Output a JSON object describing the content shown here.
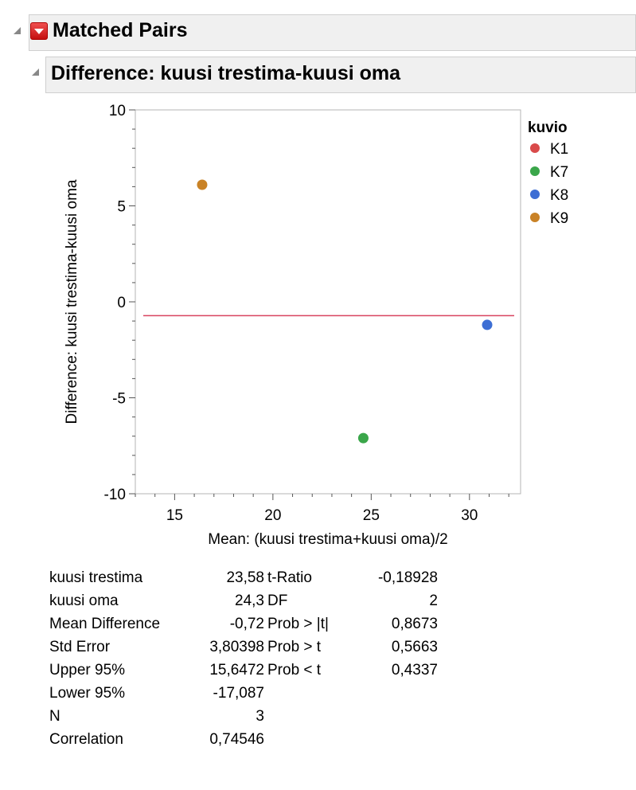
{
  "report": {
    "title": "Matched Pairs",
    "subtitle": "Difference: kuusi trestima-kuusi oma"
  },
  "chart_data": {
    "type": "scatter",
    "xlabel": "Mean: (kuusi trestima+kuusi oma)/2",
    "ylabel": "Difference: kuusi trestima-kuusi oma",
    "xlim": [
      13,
      32.6
    ],
    "ylim": [
      -10,
      10
    ],
    "x_ticks": [
      15,
      20,
      25,
      30
    ],
    "y_ticks": [
      -10,
      -5,
      0,
      5,
      10
    ],
    "mean_difference_line": -0.72,
    "mean_line_color": "#d9435f",
    "legend_title": "kuvio",
    "legend_position": "right",
    "series": [
      {
        "name": "K1",
        "color": "#d94a4a",
        "points": []
      },
      {
        "name": "K7",
        "color": "#3aa64a",
        "points": [
          {
            "x": 24.6,
            "y": -7.1
          }
        ]
      },
      {
        "name": "K8",
        "color": "#3d6ed4",
        "points": [
          {
            "x": 30.9,
            "y": -1.2
          }
        ]
      },
      {
        "name": "K9",
        "color": "#c98226",
        "points": [
          {
            "x": 16.4,
            "y": 6.1
          }
        ]
      }
    ]
  },
  "stats_left": [
    {
      "label": "kuusi trestima",
      "value": "23,58"
    },
    {
      "label": "kuusi oma",
      "value": "24,3"
    },
    {
      "label": "Mean Difference",
      "value": "-0,72"
    },
    {
      "label": "Std Error",
      "value": "3,80398"
    },
    {
      "label": "Upper 95%",
      "value": "15,6472"
    },
    {
      "label": "Lower 95%",
      "value": "-17,087"
    },
    {
      "label": "N",
      "value": "3"
    },
    {
      "label": "Correlation",
      "value": "0,74546"
    }
  ],
  "stats_right": [
    {
      "label": "t-Ratio",
      "value": "-0,18928"
    },
    {
      "label": "DF",
      "value": "2"
    },
    {
      "label": "Prob > |t|",
      "value": "0,8673"
    },
    {
      "label": "Prob > t",
      "value": "0,5663"
    },
    {
      "label": "Prob < t",
      "value": "0,4337"
    }
  ]
}
